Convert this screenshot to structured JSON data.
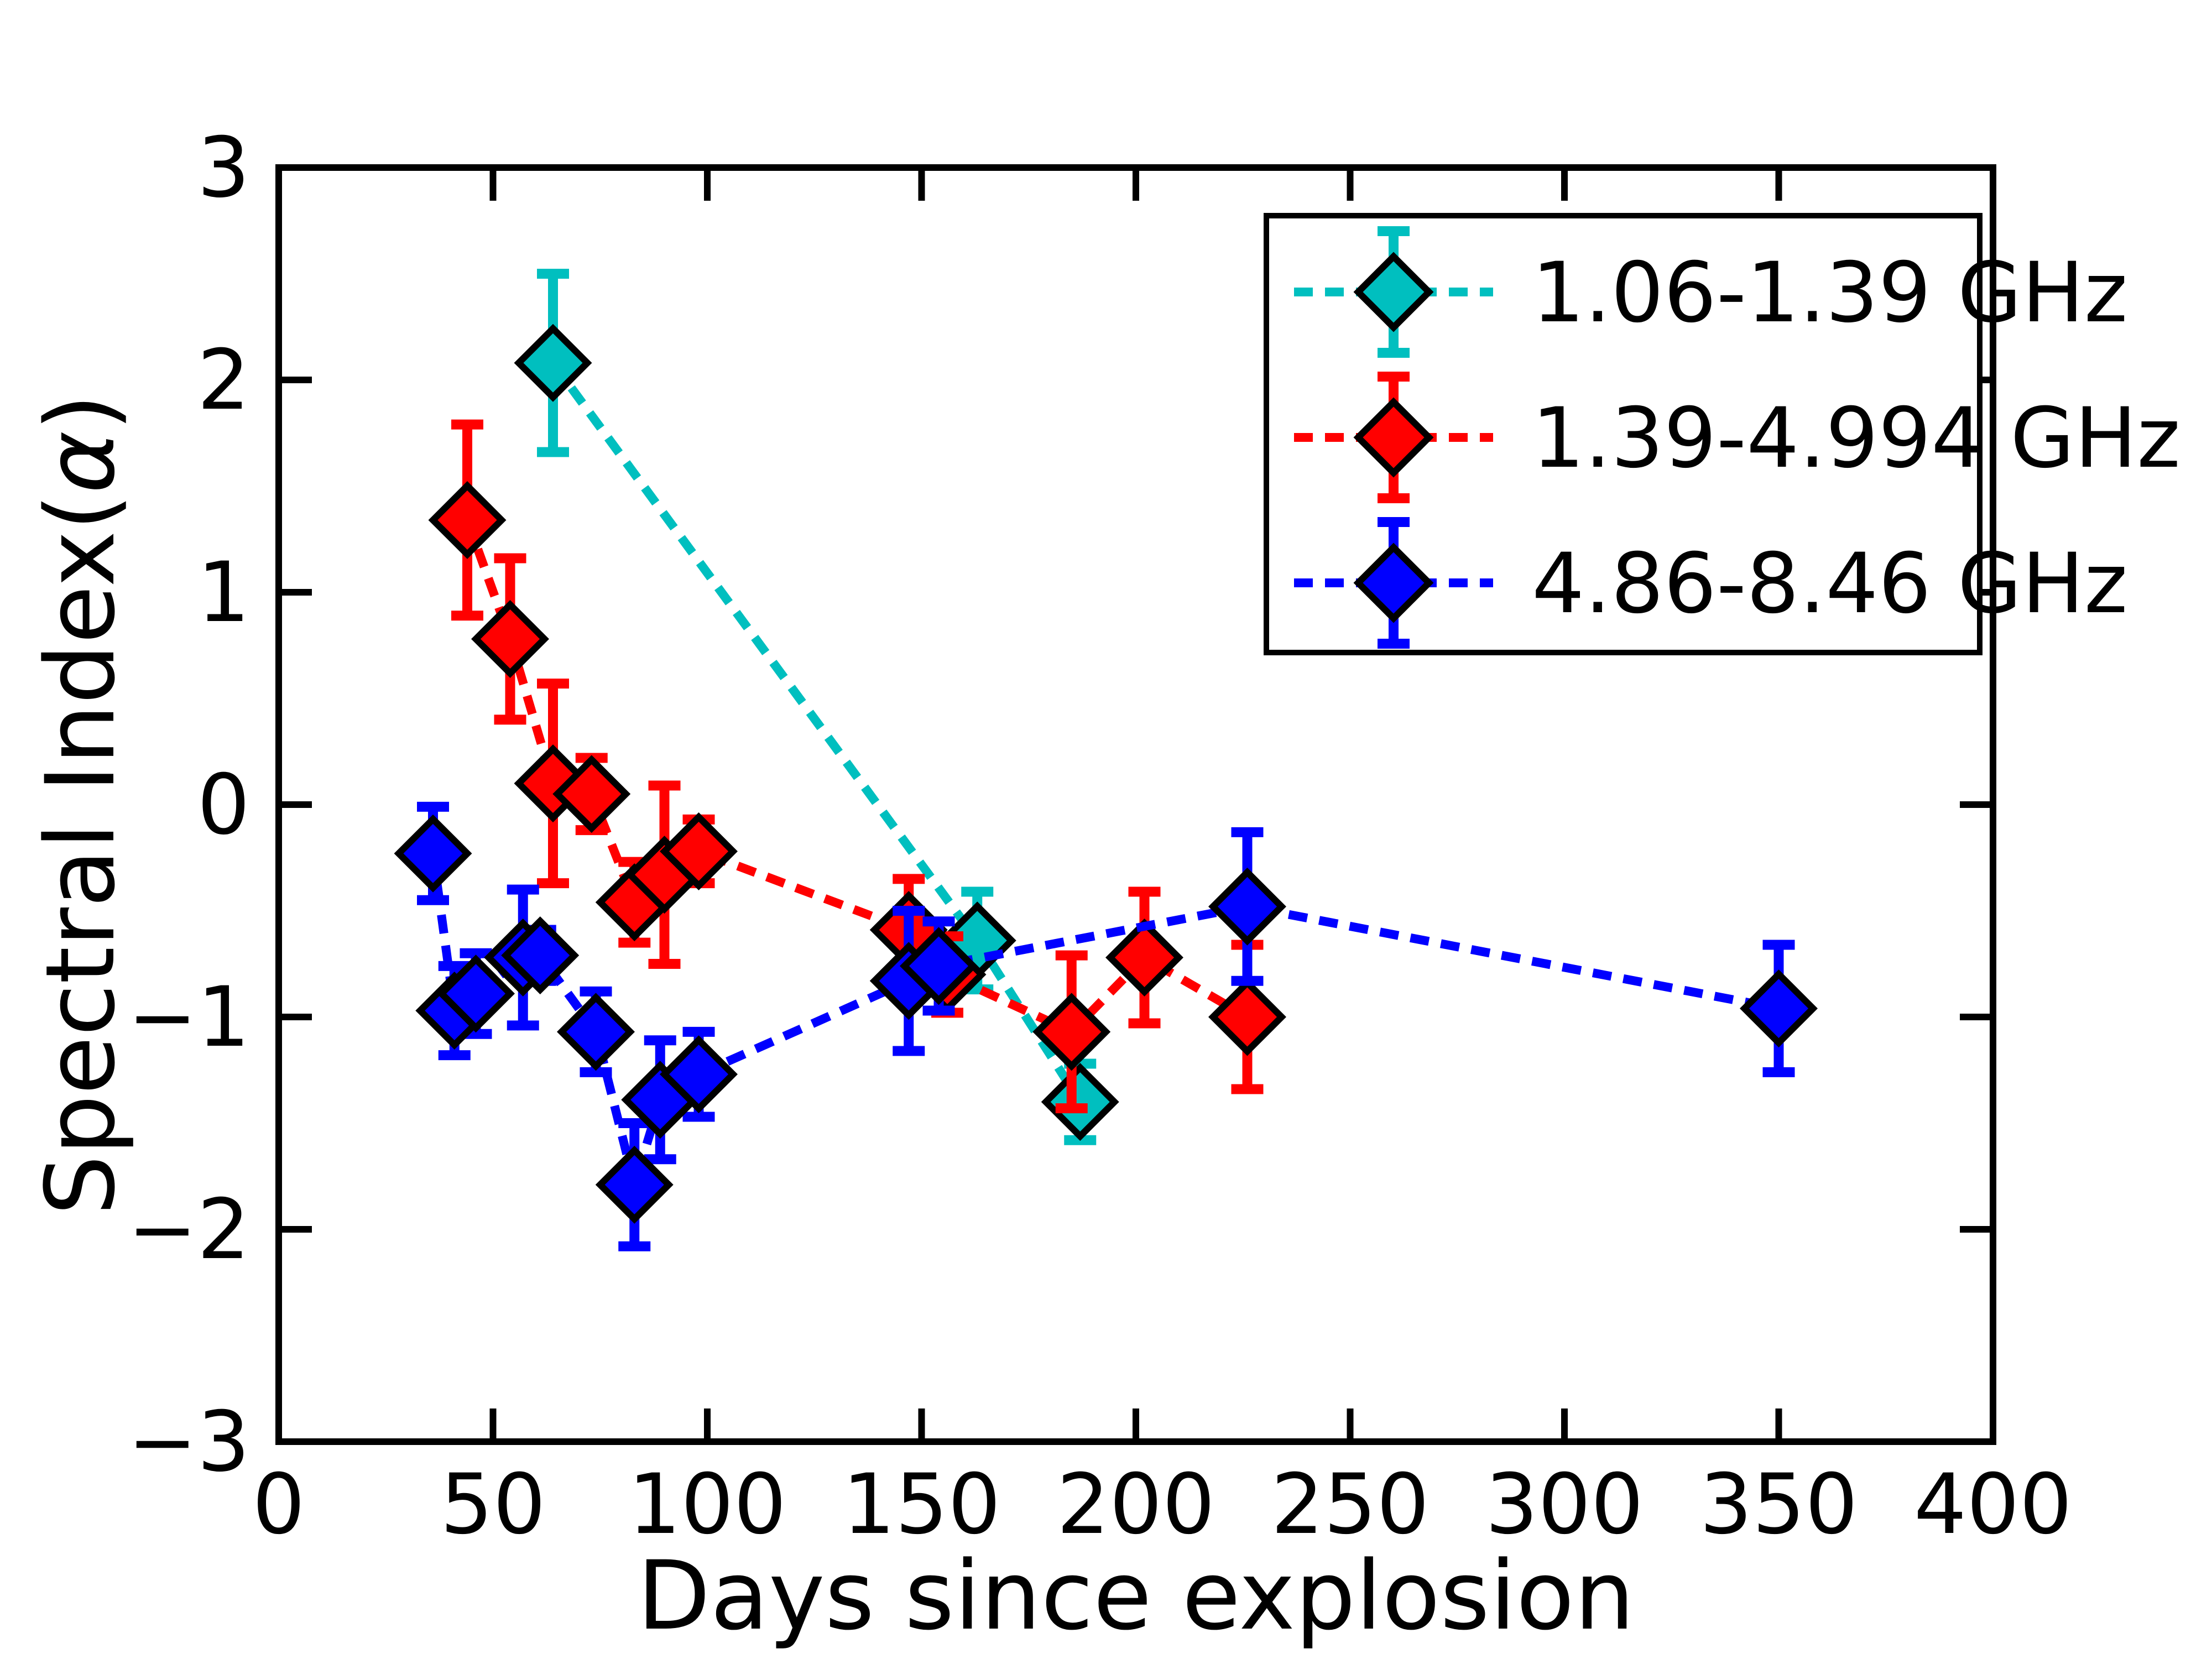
{
  "chart_data": {
    "type": "scatter",
    "title": "",
    "xlabel": "Days since explosion",
    "ylabel": "Spectral Index(α)",
    "ylabel_parts": {
      "prefix": "Spectral Index(",
      "alpha": "α",
      "suffix": ")"
    },
    "xlim": [
      0,
      400
    ],
    "ylim": [
      -3,
      3
    ],
    "grid": false,
    "legend_position": "upper right",
    "x_ticks": {
      "values": [
        0,
        50,
        100,
        150,
        200,
        250,
        300,
        350,
        400
      ],
      "labels": [
        "0",
        "50",
        "100",
        "150",
        "200",
        "250",
        "300",
        "350",
        "400"
      ]
    },
    "y_ticks": {
      "values": [
        3,
        2,
        1,
        0,
        -1,
        -2,
        -3
      ],
      "labels": [
        "3",
        "2",
        "1",
        "0",
        "−1",
        "−2",
        "−3"
      ]
    },
    "series": [
      {
        "name": "1.06-1.39 GHz",
        "color": "#00bfbf",
        "marker": "diamond",
        "linestyle": "dashed",
        "points": [
          {
            "x": 64,
            "y": 2.08,
            "yerr": 0.42
          },
          {
            "x": 163,
            "y": -0.64,
            "yerr": 0.23
          },
          {
            "x": 187,
            "y": -1.4,
            "yerr": 0.18
          }
        ]
      },
      {
        "name": "1.39-4.994 GHz",
        "color": "#ff0000",
        "marker": "diamond",
        "linestyle": "dashed",
        "points": [
          {
            "x": 44,
            "y": 1.34,
            "yerr": 0.45
          },
          {
            "x": 54,
            "y": 0.78,
            "yerr": 0.38
          },
          {
            "x": 64,
            "y": 0.1,
            "yerr": 0.47
          },
          {
            "x": 73,
            "y": 0.05,
            "yerr": 0.17
          },
          {
            "x": 83,
            "y": -0.46,
            "yerr": 0.19
          },
          {
            "x": 90,
            "y": -0.33,
            "yerr": 0.42
          },
          {
            "x": 98,
            "y": -0.22,
            "yerr": 0.15
          },
          {
            "x": 147,
            "y": -0.59,
            "yerr": 0.24
          },
          {
            "x": 156,
            "y": -0.8,
            "yerr": 0.18
          },
          {
            "x": 185,
            "y": -1.07,
            "yerr": 0.36
          },
          {
            "x": 202,
            "y": -0.72,
            "yerr": 0.31
          },
          {
            "x": 226,
            "y": -1.0,
            "yerr": 0.34
          }
        ]
      },
      {
        "name": "4.86-8.46 GHz",
        "color": "#0000ff",
        "marker": "diamond",
        "linestyle": "dashed",
        "points": [
          {
            "x": 36,
            "y": -0.23,
            "yerr": 0.22
          },
          {
            "x": 41,
            "y": -0.97,
            "yerr": 0.21
          },
          {
            "x": 46,
            "y": -0.89,
            "yerr": 0.19
          },
          {
            "x": 57,
            "y": -0.72,
            "yerr": 0.32
          },
          {
            "x": 61,
            "y": -0.71,
            "yerr": 0.12
          },
          {
            "x": 74,
            "y": -1.07,
            "yerr": 0.19
          },
          {
            "x": 83,
            "y": -1.79,
            "yerr": 0.29
          },
          {
            "x": 89,
            "y": -1.39,
            "yerr": 0.28
          },
          {
            "x": 98,
            "y": -1.27,
            "yerr": 0.2
          },
          {
            "x": 147,
            "y": -0.83,
            "yerr": 0.33
          },
          {
            "x": 154,
            "y": -0.76,
            "yerr": 0.21
          },
          {
            "x": 226,
            "y": -0.48,
            "yerr": 0.35
          },
          {
            "x": 350,
            "y": -0.96,
            "yerr": 0.3
          }
        ]
      }
    ]
  },
  "colors": {
    "cyan_series": "#00bfbf",
    "red_series": "#ff0000",
    "blue_series": "#0000ff",
    "axis": "#000000",
    "background": "#ffffff"
  }
}
